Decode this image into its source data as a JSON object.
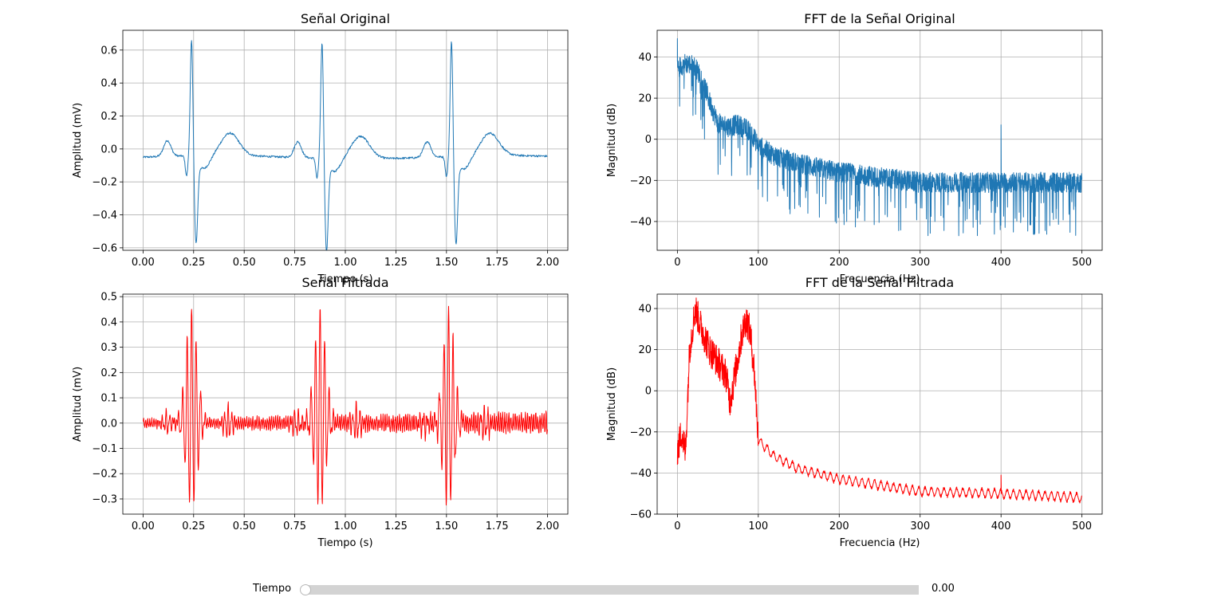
{
  "chart_data": [
    {
      "type": "line",
      "title": "Señal Original",
      "xlabel": "Tiempo (s)",
      "ylabel": "Amplitud (mV)",
      "xlim": [
        -0.1,
        2.1
      ],
      "ylim": [
        -0.615,
        0.72
      ],
      "xticks": [
        0,
        0.25,
        0.5,
        0.75,
        1.0,
        1.25,
        1.5,
        1.75,
        2.0
      ],
      "xtick_labels": [
        "0.00",
        "0.25",
        "0.50",
        "0.75",
        "1.00",
        "1.25",
        "1.50",
        "1.75",
        "2.00"
      ],
      "yticks": [
        -0.6,
        -0.4,
        -0.2,
        0.0,
        0.2,
        0.4,
        0.6
      ],
      "ytick_labels": [
        "−0.6",
        "−0.4",
        "−0.2",
        "0.0",
        "0.2",
        "0.4",
        "0.6"
      ],
      "grid": true,
      "color": "#1f77b4",
      "signal": {
        "kind": "ecg",
        "beat_times": [
          0.24,
          0.885,
          1.525
        ],
        "r_peak_mV": [
          0.67,
          0.67,
          0.67
        ],
        "s_trough_mV": [
          -0.52,
          -0.55,
          -0.52
        ],
        "p_wave_mV": 0.06,
        "t_wave_mV": 0.08,
        "baseline_mV": -0.05
      }
    },
    {
      "type": "line",
      "title": "FFT de la Señal Original",
      "xlabel": "Frecuencia (Hz)",
      "ylabel": "Magnitud (dB)",
      "xlim": [
        -25,
        525
      ],
      "ylim": [
        -54,
        53
      ],
      "xticks": [
        0,
        100,
        200,
        300,
        400,
        500
      ],
      "xtick_labels": [
        "0",
        "100",
        "200",
        "300",
        "400",
        "500"
      ],
      "yticks": [
        -40,
        -20,
        0,
        20,
        40
      ],
      "ytick_labels": [
        "−40",
        "−20",
        "0",
        "20",
        "40"
      ],
      "grid": true,
      "color": "#1f77b4",
      "spectrum": {
        "kind": "noisy",
        "envelope": [
          [
            0,
            35
          ],
          [
            10,
            37
          ],
          [
            20,
            36
          ],
          [
            30,
            30
          ],
          [
            40,
            18
          ],
          [
            50,
            8
          ],
          [
            60,
            6
          ],
          [
            75,
            7
          ],
          [
            90,
            4
          ],
          [
            100,
            -3
          ],
          [
            120,
            -8
          ],
          [
            150,
            -12
          ],
          [
            200,
            -16
          ],
          [
            300,
            -21
          ],
          [
            400,
            -21
          ],
          [
            500,
            -21
          ]
        ],
        "spikes": [
          [
            0,
            49
          ],
          [
            400,
            7
          ]
        ],
        "floor_min_dB": -50
      }
    },
    {
      "type": "line",
      "title": "Señal Filtrada",
      "xlabel": "Tiempo (s)",
      "ylabel": "Amplitud (mV)",
      "xlim": [
        -0.1,
        2.1
      ],
      "ylim": [
        -0.36,
        0.51
      ],
      "xticks": [
        0,
        0.25,
        0.5,
        0.75,
        1.0,
        1.25,
        1.5,
        1.75,
        2.0
      ],
      "xtick_labels": [
        "0.00",
        "0.25",
        "0.50",
        "0.75",
        "1.00",
        "1.25",
        "1.50",
        "1.75",
        "2.00"
      ],
      "yticks": [
        -0.3,
        -0.2,
        -0.1,
        0.0,
        0.1,
        0.2,
        0.3,
        0.4,
        0.5
      ],
      "ytick_labels": [
        "−0.3",
        "−0.2",
        "−0.1",
        "0.0",
        "0.1",
        "0.2",
        "0.3",
        "0.4",
        "0.5"
      ],
      "grid": true,
      "color": "#ff0000",
      "signal": {
        "kind": "bandpass",
        "beat_times": [
          0.24,
          0.875,
          1.51
        ],
        "peak_mV": [
          0.46,
          0.47,
          0.45
        ],
        "trough_mV": [
          -0.33,
          -0.32,
          -0.33
        ],
        "ripple_mV": 0.015
      }
    },
    {
      "type": "line",
      "title": "FFT de la Señal Filtrada",
      "xlabel": "Frecuencia (Hz)",
      "ylabel": "Magnitud (dB)",
      "xlim": [
        -25,
        525
      ],
      "ylim": [
        -60,
        47
      ],
      "xticks": [
        0,
        100,
        200,
        300,
        400,
        500
      ],
      "xtick_labels": [
        "0",
        "100",
        "200",
        "300",
        "400",
        "500"
      ],
      "yticks": [
        -60,
        -40,
        -20,
        0,
        20,
        40
      ],
      "ytick_labels": [
        "−60",
        "−40",
        "−20",
        "0",
        "20",
        "40"
      ],
      "grid": true,
      "color": "#ff0000",
      "spectrum": {
        "kind": "filtered",
        "envelope": [
          [
            0,
            -30
          ],
          [
            5,
            -20
          ],
          [
            10,
            -30
          ],
          [
            15,
            20
          ],
          [
            22,
            40
          ],
          [
            30,
            30
          ],
          [
            40,
            20
          ],
          [
            50,
            14
          ],
          [
            60,
            8
          ],
          [
            65,
            -5
          ],
          [
            70,
            5
          ],
          [
            80,
            28
          ],
          [
            85,
            35
          ],
          [
            90,
            28
          ],
          [
            95,
            10
          ],
          [
            100,
            -24
          ],
          [
            120,
            -32
          ],
          [
            150,
            -38
          ],
          [
            200,
            -43
          ],
          [
            300,
            -49
          ],
          [
            400,
            -50
          ],
          [
            500,
            -52
          ]
        ],
        "spikes": [
          [
            400,
            -41
          ]
        ],
        "stopband_ripple_dB": 2
      }
    }
  ],
  "slider": {
    "label": "Tiempo",
    "value_text": "0.00",
    "value_fraction": 0.0
  }
}
